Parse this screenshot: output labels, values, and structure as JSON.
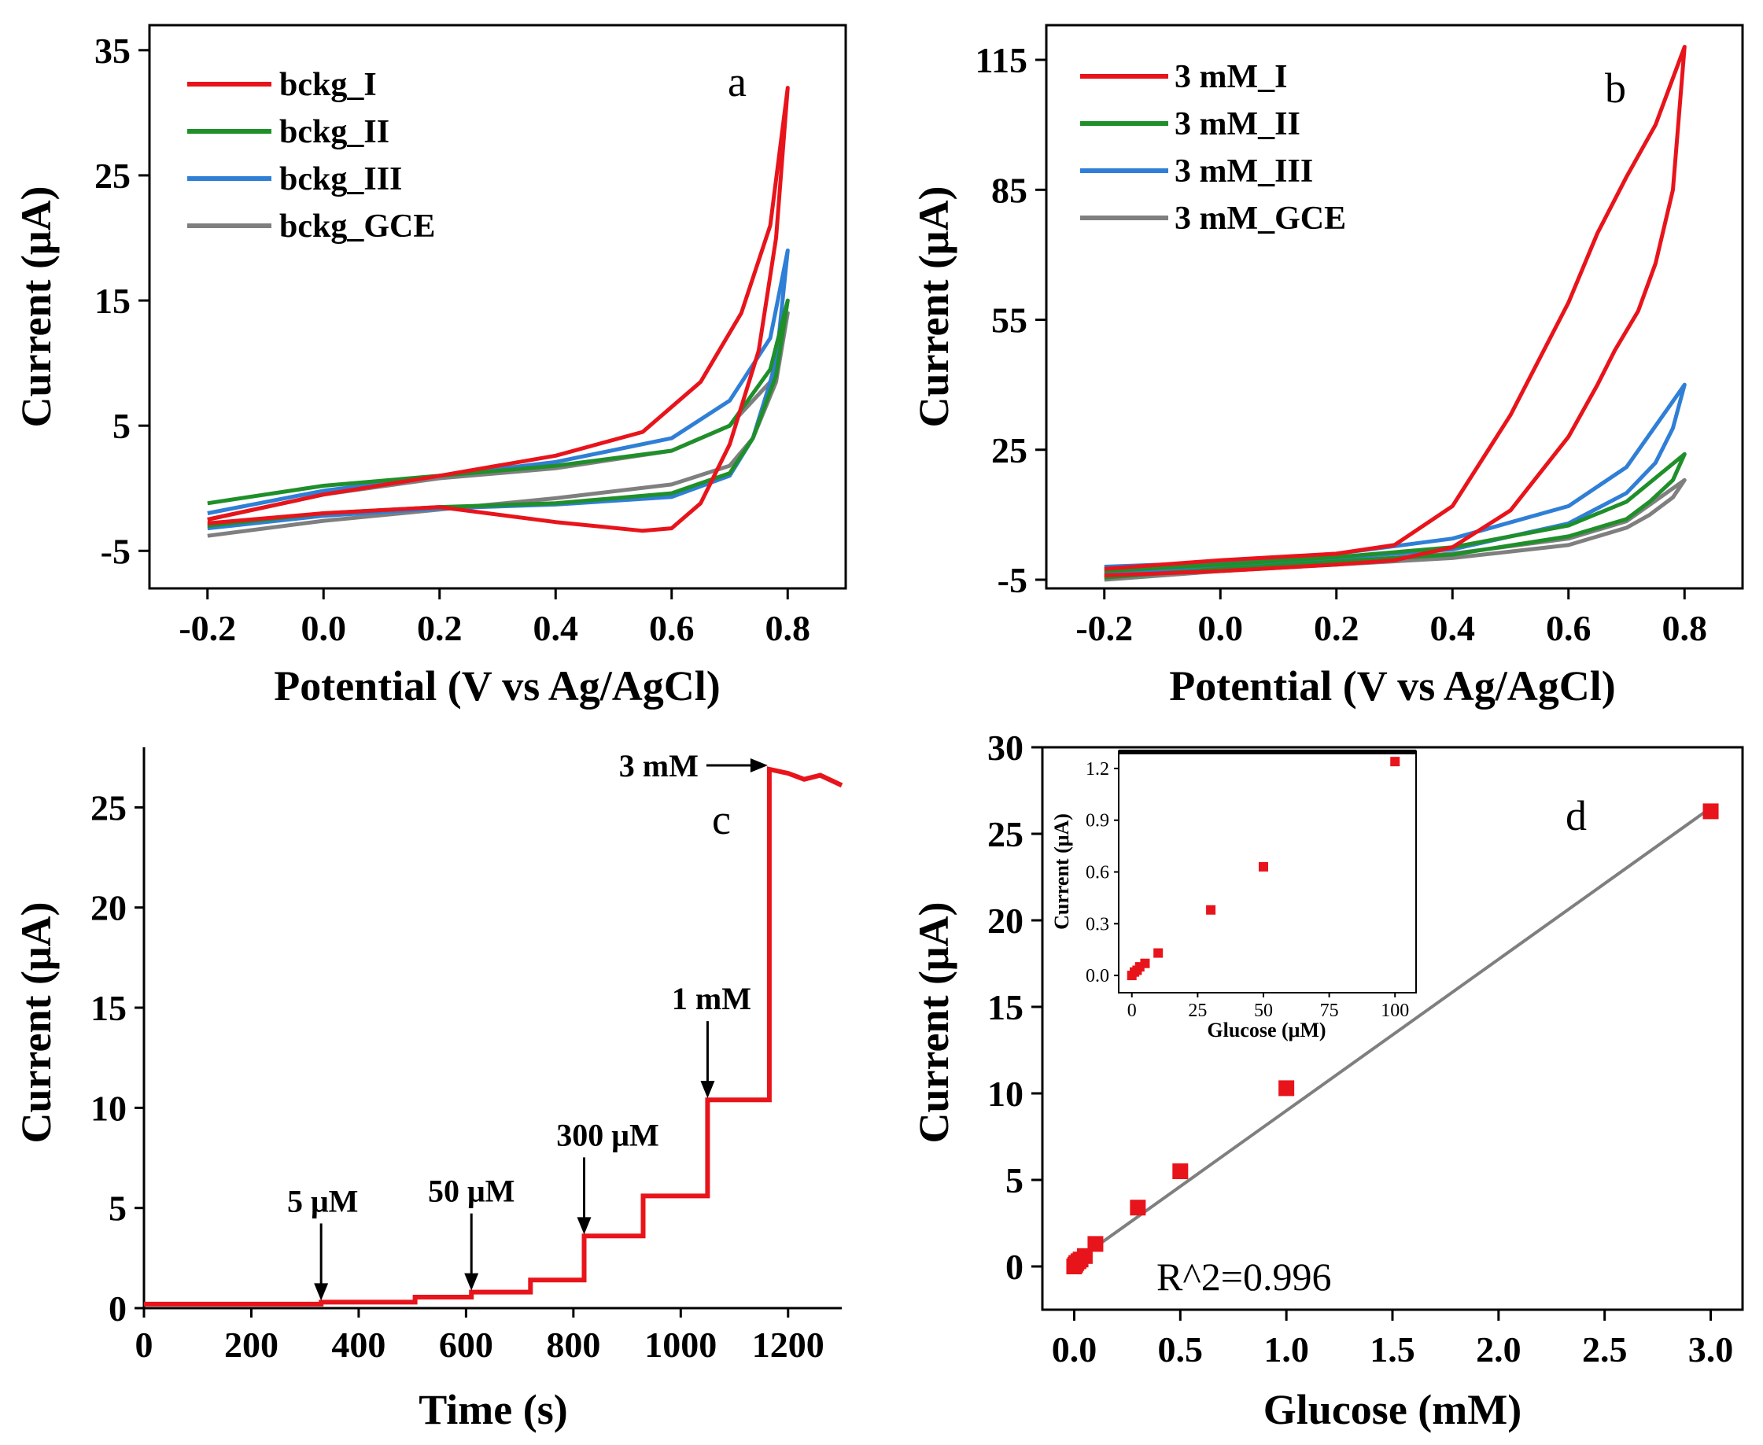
{
  "colors": {
    "red": "#e8141b",
    "green": "#1f8f2a",
    "blue": "#2f7fd6",
    "gray": "#7f7f7f"
  },
  "chart_data": [
    {
      "panel": "a",
      "type": "line",
      "xlabel": "Potential (V vs Ag/AgCl)",
      "ylabel": "Current (μA)",
      "xlim": [
        -0.3,
        0.9
      ],
      "ylim": [
        -8,
        37
      ],
      "xticks": [
        -0.2,
        0.0,
        0.2,
        0.4,
        0.6,
        0.8
      ],
      "yticks": [
        -5,
        5,
        15,
        25,
        35
      ],
      "xtick_labels": [
        "-0.2",
        "0.0",
        "0.2",
        "0.4",
        "0.6",
        "0.8"
      ],
      "ytick_labels": [
        "-5",
        "5",
        "15",
        "25",
        "35"
      ],
      "legend": "top-left",
      "series": [
        {
          "name": "bckg_I",
          "color": "red",
          "points": [
            [
              -0.2,
              -2.5
            ],
            [
              0.0,
              -0.5
            ],
            [
              0.2,
              1.0
            ],
            [
              0.4,
              2.6
            ],
            [
              0.55,
              4.5
            ],
            [
              0.65,
              8.5
            ],
            [
              0.72,
              14
            ],
            [
              0.77,
              21
            ],
            [
              0.8,
              32
            ],
            [
              0.78,
              20
            ],
            [
              0.75,
              11
            ],
            [
              0.7,
              3.5
            ],
            [
              0.65,
              -1.2
            ],
            [
              0.6,
              -3.2
            ],
            [
              0.55,
              -3.4
            ],
            [
              0.4,
              -2.7
            ],
            [
              0.2,
              -1.5
            ],
            [
              0.0,
              -2.0
            ],
            [
              -0.2,
              -2.8
            ]
          ]
        },
        {
          "name": "bckg_II",
          "color": "green",
          "points": [
            [
              -0.2,
              -1.2
            ],
            [
              0.0,
              0.2
            ],
            [
              0.2,
              1.0
            ],
            [
              0.4,
              1.8
            ],
            [
              0.6,
              3.0
            ],
            [
              0.7,
              5.0
            ],
            [
              0.77,
              9.5
            ],
            [
              0.8,
              15
            ],
            [
              0.78,
              9
            ],
            [
              0.74,
              4
            ],
            [
              0.7,
              1.2
            ],
            [
              0.6,
              -0.4
            ],
            [
              0.4,
              -1.2
            ],
            [
              0.2,
              -1.5
            ],
            [
              0.0,
              -2.0
            ],
            [
              -0.2,
              -3.0
            ]
          ]
        },
        {
          "name": "bckg_III",
          "color": "blue",
          "points": [
            [
              -0.2,
              -2.0
            ],
            [
              0.0,
              -0.2
            ],
            [
              0.2,
              1.0
            ],
            [
              0.4,
              2.1
            ],
            [
              0.6,
              4.0
            ],
            [
              0.7,
              7.0
            ],
            [
              0.77,
              12
            ],
            [
              0.8,
              19
            ],
            [
              0.78,
              10
            ],
            [
              0.74,
              4
            ],
            [
              0.7,
              1.0
            ],
            [
              0.6,
              -0.7
            ],
            [
              0.4,
              -1.3
            ],
            [
              0.2,
              -1.6
            ],
            [
              0.0,
              -2.2
            ],
            [
              -0.2,
              -3.2
            ]
          ]
        },
        {
          "name": "bckg_GCE",
          "color": "gray",
          "points": [
            [
              -0.2,
              -2.5
            ],
            [
              0.0,
              -0.5
            ],
            [
              0.2,
              0.8
            ],
            [
              0.4,
              1.6
            ],
            [
              0.6,
              3.0
            ],
            [
              0.7,
              5.0
            ],
            [
              0.77,
              8.5
            ],
            [
              0.8,
              14
            ],
            [
              0.78,
              8.5
            ],
            [
              0.74,
              4
            ],
            [
              0.7,
              1.8
            ],
            [
              0.6,
              0.3
            ],
            [
              0.4,
              -0.8
            ],
            [
              0.2,
              -1.7
            ],
            [
              0.0,
              -2.6
            ],
            [
              -0.2,
              -3.8
            ]
          ]
        }
      ]
    },
    {
      "panel": "b",
      "type": "line",
      "xlabel": "Potential (V vs Ag/AgCl)",
      "ylabel": "Current (μA)",
      "xlim": [
        -0.3,
        0.9
      ],
      "ylim": [
        -7,
        123
      ],
      "xticks": [
        -0.2,
        0.0,
        0.2,
        0.4,
        0.6,
        0.8
      ],
      "yticks": [
        -5,
        25,
        55,
        85,
        115
      ],
      "xtick_labels": [
        "-0.2",
        "0.0",
        "0.2",
        "0.4",
        "0.6",
        "0.8"
      ],
      "ytick_labels": [
        "-5",
        "25",
        "55",
        "85",
        "115"
      ],
      "legend": "top-left",
      "series": [
        {
          "name": "3 mM_I",
          "color": "red",
          "points": [
            [
              -0.2,
              -2.5
            ],
            [
              0.0,
              -0.5
            ],
            [
              0.2,
              1.0
            ],
            [
              0.3,
              3.0
            ],
            [
              0.4,
              12
            ],
            [
              0.5,
              33
            ],
            [
              0.6,
              59
            ],
            [
              0.65,
              75
            ],
            [
              0.7,
              88
            ],
            [
              0.75,
              100
            ],
            [
              0.8,
              118
            ],
            [
              0.78,
              85
            ],
            [
              0.75,
              68
            ],
            [
              0.72,
              57
            ],
            [
              0.68,
              48
            ],
            [
              0.65,
              40
            ],
            [
              0.6,
              28
            ],
            [
              0.5,
              11
            ],
            [
              0.4,
              2.5
            ],
            [
              0.3,
              -0.5
            ],
            [
              0.2,
              -1.5
            ],
            [
              0.0,
              -3.0
            ],
            [
              -0.2,
              -4.0
            ]
          ]
        },
        {
          "name": "3 mM_II",
          "color": "green",
          "points": [
            [
              -0.2,
              -3.0
            ],
            [
              0.0,
              -1.5
            ],
            [
              0.2,
              0.2
            ],
            [
              0.4,
              2.5
            ],
            [
              0.6,
              7.5
            ],
            [
              0.7,
              13
            ],
            [
              0.8,
              24
            ],
            [
              0.78,
              18
            ],
            [
              0.74,
              13
            ],
            [
              0.7,
              9
            ],
            [
              0.6,
              5
            ],
            [
              0.4,
              0.8
            ],
            [
              0.2,
              -0.8
            ],
            [
              0.0,
              -2.5
            ],
            [
              -0.2,
              -4.5
            ]
          ]
        },
        {
          "name": "3 mM_III",
          "color": "blue",
          "points": [
            [
              -0.2,
              -2.0
            ],
            [
              0.0,
              -1.0
            ],
            [
              0.2,
              1.0
            ],
            [
              0.4,
              4.5
            ],
            [
              0.6,
              12
            ],
            [
              0.7,
              21
            ],
            [
              0.8,
              40
            ],
            [
              0.78,
              30
            ],
            [
              0.75,
              22
            ],
            [
              0.7,
              15
            ],
            [
              0.6,
              8
            ],
            [
              0.4,
              2
            ],
            [
              0.2,
              0.0
            ],
            [
              0.0,
              -1.8
            ],
            [
              -0.2,
              -3.5
            ]
          ]
        },
        {
          "name": "3 mM_GCE",
          "color": "gray",
          "points": [
            [
              -0.2,
              -4.0
            ],
            [
              0.0,
              -2.5
            ],
            [
              0.2,
              -0.8
            ],
            [
              0.4,
              1.0
            ],
            [
              0.6,
              4.5
            ],
            [
              0.7,
              8.5
            ],
            [
              0.8,
              18
            ],
            [
              0.78,
              14
            ],
            [
              0.74,
              10
            ],
            [
              0.7,
              7
            ],
            [
              0.6,
              3
            ],
            [
              0.4,
              0.0
            ],
            [
              0.2,
              -1.5
            ],
            [
              0.0,
              -3.0
            ],
            [
              -0.2,
              -5.0
            ]
          ]
        }
      ]
    },
    {
      "panel": "c",
      "type": "line",
      "xlabel": "Time (s)",
      "ylabel": "Current (μA)",
      "xlim": [
        0,
        1300
      ],
      "ylim": [
        0,
        28
      ],
      "xticks": [
        0,
        200,
        400,
        600,
        800,
        1000,
        1200
      ],
      "yticks": [
        0,
        5,
        10,
        15,
        20,
        25
      ],
      "xtick_labels": [
        "0",
        "200",
        "400",
        "600",
        "800",
        "1000",
        "1200"
      ],
      "ytick_labels": [
        "0",
        "5",
        "10",
        "15",
        "20",
        "25"
      ],
      "series": [
        {
          "name": "amperometric response",
          "color": "red",
          "points": [
            [
              0,
              0.2
            ],
            [
              330,
              0.2
            ],
            [
              330,
              0.3
            ],
            [
              505,
              0.3
            ],
            [
              505,
              0.55
            ],
            [
              610,
              0.55
            ],
            [
              610,
              0.8
            ],
            [
              720,
              0.8
            ],
            [
              720,
              1.4
            ],
            [
              820,
              1.4
            ],
            [
              820,
              3.6
            ],
            [
              930,
              3.6
            ],
            [
              930,
              5.6
            ],
            [
              1050,
              5.6
            ],
            [
              1050,
              10.4
            ],
            [
              1165,
              10.4
            ],
            [
              1165,
              26.9
            ],
            [
              1200,
              26.7
            ],
            [
              1230,
              26.4
            ],
            [
              1260,
              26.6
            ],
            [
              1300,
              26.1
            ]
          ]
        }
      ],
      "annotations": [
        {
          "text": "5 μM",
          "x": 330,
          "y": 0.3
        },
        {
          "text": "50 μM",
          "x": 610,
          "y": 0.8
        },
        {
          "text": "300 μM",
          "x": 820,
          "y": 3.6
        },
        {
          "text": "1 mM",
          "x": 1050,
          "y": 10.4
        },
        {
          "text": "3 mM",
          "x": 1165,
          "y": 26.9
        }
      ]
    },
    {
      "panel": "d",
      "type": "scatter",
      "xlabel": "Glucose (mM)",
      "ylabel": "Current (μA)",
      "xlim": [
        -0.15,
        3.15
      ],
      "ylim": [
        -2.5,
        30
      ],
      "xticks": [
        0.0,
        0.5,
        1.0,
        1.5,
        2.0,
        2.5,
        3.0
      ],
      "yticks": [
        0,
        5,
        10,
        15,
        20,
        25,
        30
      ],
      "xtick_labels": [
        "0.0",
        "0.5",
        "1.0",
        "1.5",
        "2.0",
        "2.5",
        "3.0"
      ],
      "ytick_labels": [
        "0",
        "5",
        "10",
        "15",
        "20",
        "25",
        "30"
      ],
      "points": [
        [
          0.0,
          0.0
        ],
        [
          0.005,
          0.1
        ],
        [
          0.01,
          0.2
        ],
        [
          0.02,
          0.3
        ],
        [
          0.03,
          0.4
        ],
        [
          0.05,
          0.6
        ],
        [
          0.1,
          1.3
        ],
        [
          0.3,
          3.4
        ],
        [
          0.5,
          5.5
        ],
        [
          1.0,
          10.3
        ],
        [
          3.0,
          26.3
        ]
      ],
      "fit": {
        "x": [
          0.0,
          3.0
        ],
        "y": [
          0.25,
          26.5
        ]
      },
      "r2_text": "R^2=0.996",
      "inset": {
        "xlabel": "Glucose (μM)",
        "ylabel": "Current (μA)",
        "xlim": [
          -5,
          108
        ],
        "ylim": [
          -0.1,
          1.3
        ],
        "xticks": [
          0,
          25,
          50,
          75,
          100
        ],
        "yticks": [
          0.0,
          0.3,
          0.6,
          0.9,
          1.2
        ],
        "xtick_labels": [
          "0",
          "25",
          "50",
          "75",
          "100"
        ],
        "ytick_labels": [
          "0.0",
          "0.3",
          "0.6",
          "0.9",
          "1.2"
        ],
        "points": [
          [
            0,
            0.0
          ],
          [
            1,
            0.02
          ],
          [
            2,
            0.03
          ],
          [
            3,
            0.05
          ],
          [
            5,
            0.07
          ],
          [
            10,
            0.13
          ],
          [
            30,
            0.38
          ],
          [
            50,
            0.63
          ],
          [
            100,
            1.24
          ]
        ]
      }
    }
  ],
  "panel_labels": [
    "a",
    "b",
    "c",
    "d"
  ]
}
